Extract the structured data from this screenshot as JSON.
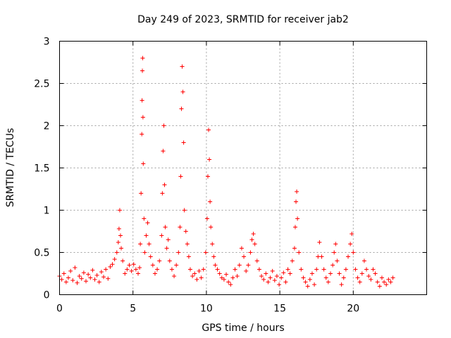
{
  "chart_data": {
    "type": "scatter",
    "title": "Day 249 of 2023, SRMTID for receiver jab2",
    "xlabel": "GPS time / hours",
    "ylabel": "SRMTID / TECUs",
    "xlim": [
      0,
      25
    ],
    "ylim": [
      0,
      3
    ],
    "xticks": [
      0,
      5,
      10,
      15,
      20
    ],
    "yticks": [
      0,
      0.5,
      1,
      1.5,
      2,
      2.5,
      3
    ],
    "xtick_labels": [
      "0",
      "5",
      "10",
      "15",
      "20"
    ],
    "ytick_labels": [
      "0",
      "0.5",
      "1",
      "1.5",
      "2",
      "2.5",
      "3"
    ],
    "grid": true,
    "marker": "+",
    "marker_color": "#ff0000",
    "series": [
      {
        "name": "SRMTID",
        "x": [
          0.0,
          0.15,
          0.3,
          0.45,
          0.6,
          0.75,
          0.9,
          1.05,
          1.2,
          1.35,
          1.5,
          1.65,
          1.8,
          1.95,
          2.1,
          2.25,
          2.4,
          2.55,
          2.7,
          2.85,
          3.0,
          3.15,
          3.3,
          3.45,
          3.6,
          3.75,
          3.9,
          4.0,
          4.05,
          4.1,
          4.15,
          4.2,
          4.3,
          4.45,
          4.6,
          4.75,
          4.9,
          5.05,
          5.2,
          5.35,
          5.45,
          5.5,
          5.55,
          5.6,
          5.62,
          5.64,
          5.66,
          5.68,
          5.7,
          5.75,
          5.8,
          5.9,
          6.0,
          6.1,
          6.2,
          6.35,
          6.5,
          6.65,
          6.8,
          6.95,
          7.0,
          7.05,
          7.1,
          7.15,
          7.2,
          7.3,
          7.4,
          7.5,
          7.65,
          7.8,
          7.95,
          8.1,
          8.2,
          8.25,
          8.3,
          8.35,
          8.4,
          8.45,
          8.5,
          8.6,
          8.7,
          8.8,
          8.9,
          9.05,
          9.2,
          9.35,
          9.5,
          9.65,
          9.8,
          9.95,
          10.05,
          10.1,
          10.15,
          10.2,
          10.25,
          10.3,
          10.4,
          10.5,
          10.6,
          10.75,
          10.9,
          11.05,
          11.2,
          11.35,
          11.5,
          11.65,
          11.8,
          11.95,
          12.1,
          12.25,
          12.4,
          12.55,
          12.7,
          12.85,
          13.0,
          13.1,
          13.2,
          13.3,
          13.45,
          13.6,
          13.75,
          13.9,
          14.05,
          14.2,
          14.35,
          14.5,
          14.65,
          14.8,
          14.95,
          15.1,
          15.25,
          15.4,
          15.55,
          15.7,
          15.85,
          16.0,
          16.05,
          16.1,
          16.15,
          16.2,
          16.3,
          16.45,
          16.6,
          16.75,
          16.9,
          17.05,
          17.2,
          17.35,
          17.5,
          17.6,
          17.7,
          17.85,
          18.0,
          18.15,
          18.3,
          18.45,
          18.6,
          18.7,
          18.8,
          18.9,
          19.05,
          19.2,
          19.35,
          19.5,
          19.65,
          19.8,
          19.9,
          20.0,
          20.15,
          20.3,
          20.45,
          20.6,
          20.75,
          20.9,
          21.05,
          21.2,
          21.35,
          21.5,
          21.65,
          21.8,
          21.95,
          22.1,
          22.25,
          22.4,
          22.55,
          22.7
        ],
        "y": [
          0.22,
          0.18,
          0.25,
          0.15,
          0.2,
          0.28,
          0.17,
          0.32,
          0.14,
          0.22,
          0.19,
          0.26,
          0.16,
          0.24,
          0.2,
          0.29,
          0.18,
          0.23,
          0.15,
          0.27,
          0.21,
          0.3,
          0.19,
          0.33,
          0.36,
          0.42,
          0.5,
          0.62,
          0.78,
          1.0,
          0.7,
          0.55,
          0.4,
          0.25,
          0.3,
          0.35,
          0.28,
          0.36,
          0.3,
          0.25,
          0.32,
          0.6,
          1.2,
          1.9,
          2.3,
          2.65,
          2.8,
          2.1,
          1.55,
          0.9,
          0.5,
          0.7,
          0.85,
          0.6,
          0.45,
          0.35,
          0.25,
          0.3,
          0.4,
          0.7,
          1.2,
          1.7,
          2.0,
          1.3,
          0.8,
          0.55,
          0.65,
          0.4,
          0.3,
          0.22,
          0.35,
          0.5,
          0.8,
          1.4,
          2.2,
          2.7,
          2.4,
          1.8,
          1.0,
          0.75,
          0.6,
          0.45,
          0.3,
          0.22,
          0.25,
          0.18,
          0.28,
          0.2,
          0.3,
          0.5,
          0.9,
          1.4,
          1.95,
          1.6,
          1.1,
          0.8,
          0.6,
          0.45,
          0.35,
          0.3,
          0.25,
          0.2,
          0.18,
          0.24,
          0.15,
          0.12,
          0.2,
          0.3,
          0.22,
          0.35,
          0.55,
          0.45,
          0.28,
          0.35,
          0.5,
          0.65,
          0.72,
          0.6,
          0.4,
          0.3,
          0.22,
          0.18,
          0.25,
          0.15,
          0.2,
          0.28,
          0.17,
          0.22,
          0.12,
          0.2,
          0.26,
          0.15,
          0.3,
          0.25,
          0.4,
          0.55,
          0.8,
          1.1,
          1.22,
          0.9,
          0.5,
          0.3,
          0.2,
          0.15,
          0.1,
          0.18,
          0.25,
          0.12,
          0.3,
          0.45,
          0.62,
          0.45,
          0.3,
          0.2,
          0.15,
          0.25,
          0.35,
          0.5,
          0.6,
          0.4,
          0.25,
          0.12,
          0.2,
          0.3,
          0.45,
          0.6,
          0.72,
          0.5,
          0.3,
          0.2,
          0.15,
          0.25,
          0.4,
          0.3,
          0.22,
          0.18,
          0.3,
          0.25,
          0.15,
          0.1,
          0.2,
          0.15,
          0.12,
          0.18,
          0.15,
          0.2
        ]
      }
    ]
  }
}
